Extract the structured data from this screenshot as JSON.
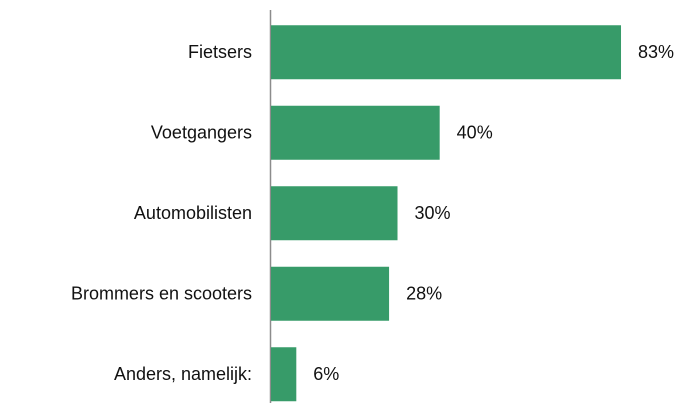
{
  "chart_data": {
    "type": "bar",
    "orientation": "horizontal",
    "categories": [
      "Fietsers",
      "Voetgangers",
      "Automobilisten",
      "Brommers en scooters",
      "Anders, namelijk:"
    ],
    "values": [
      83,
      40,
      30,
      28,
      6
    ],
    "value_labels": [
      "83%",
      "40%",
      "30%",
      "28%",
      "6%"
    ],
    "color": "#379b69",
    "xlim": [
      0,
      100
    ]
  }
}
